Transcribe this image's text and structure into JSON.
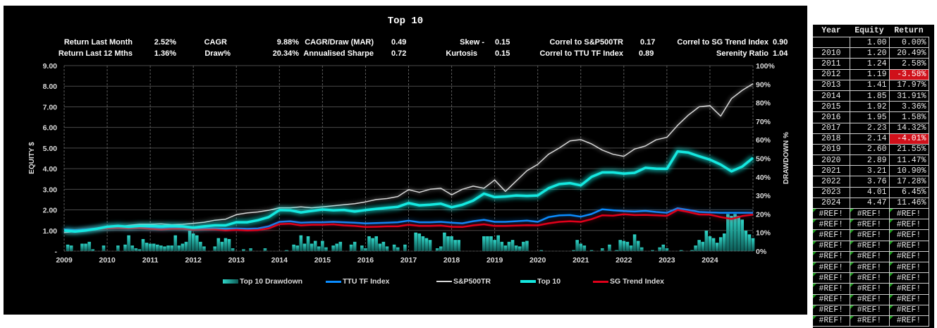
{
  "title": "Top 10",
  "stats": {
    "return_last_month": {
      "label": "Return Last Month",
      "value": "2.52%"
    },
    "return_last_12": {
      "label": "Return Last 12 Mths",
      "value": "1.36%"
    },
    "cagr": {
      "label": "CAGR",
      "value": "9.88%"
    },
    "draw": {
      "label": "Draw%",
      "value": "20.34%"
    },
    "mar": {
      "label": "CAGR/Draw (MAR)",
      "value": "0.49"
    },
    "sharpe": {
      "label": "Annualised Sharpe",
      "value": "0.72"
    },
    "skew": {
      "label": "Skew -",
      "value": "0.15"
    },
    "kurtosis": {
      "label": "Kurtosis",
      "value": "0.15"
    },
    "correl_sp": {
      "label": "Correl to S&P500TR",
      "value": "0.17"
    },
    "correl_ttu": {
      "label": "Correl to TTU TF Index",
      "value": "0.89"
    },
    "correl_sg": {
      "label": "Correl to SG Trend Index",
      "value": "0.90"
    },
    "serenity": {
      "label": "Serenity Ratio",
      "value": "1.04"
    }
  },
  "table": {
    "headers": [
      "Year",
      "Equity",
      "Return"
    ],
    "rows": [
      [
        "",
        "1.00",
        "0.00%"
      ],
      [
        "2010",
        "1.20",
        "20.49%"
      ],
      [
        "2011",
        "1.24",
        "2.58%"
      ],
      [
        "2012",
        "1.19",
        "-3.58%"
      ],
      [
        "2013",
        "1.41",
        "17.97%"
      ],
      [
        "2014",
        "1.85",
        "31.91%"
      ],
      [
        "2015",
        "1.92",
        "3.36%"
      ],
      [
        "2016",
        "1.95",
        "1.58%"
      ],
      [
        "2017",
        "2.23",
        "14.32%"
      ],
      [
        "2018",
        "2.14",
        "-4.01%"
      ],
      [
        "2019",
        "2.60",
        "21.55%"
      ],
      [
        "2020",
        "2.89",
        "11.47%"
      ],
      [
        "2021",
        "3.21",
        "10.90%"
      ],
      [
        "2022",
        "3.76",
        "17.28%"
      ],
      [
        "2023",
        "4.01",
        "6.45%"
      ],
      [
        "2024",
        "4.47",
        "11.46%"
      ],
      [
        "#REF!",
        "#REF!",
        "#REF!"
      ],
      [
        "#REF!",
        "#REF!",
        "#REF!"
      ],
      [
        "#REF!",
        "#REF!",
        "#REF!"
      ],
      [
        "#REF!",
        "#REF!",
        "#REF!"
      ],
      [
        "#REF!",
        "#REF!",
        "#REF!"
      ],
      [
        "#REF!",
        "#REF!",
        "#REF!"
      ],
      [
        "#REF!",
        "#REF!",
        "#REF!"
      ],
      [
        "#REF!",
        "#REF!",
        "#REF!"
      ],
      [
        "#REF!",
        "#REF!",
        "#REF!"
      ],
      [
        "#REF!",
        "#REF!",
        "#REF!"
      ],
      [
        "#REF!",
        "#REF!",
        "#REF!"
      ]
    ],
    "negative_color": "#d0101a"
  },
  "chart_data": {
    "type": "line",
    "ylabel": "EQUITY $",
    "y2label": "DRAWDOWN %",
    "ylim": [
      0,
      9
    ],
    "y2lim": [
      0,
      100
    ],
    "xlim": [
      2009,
      2025
    ],
    "yticks": [
      "-",
      "1.00",
      "2.00",
      "3.00",
      "4.00",
      "5.00",
      "6.00",
      "7.00",
      "8.00",
      "9.00"
    ],
    "y2ticks": [
      "0%",
      "10%",
      "20%",
      "30%",
      "40%",
      "50%",
      "60%",
      "70%",
      "80%",
      "90%",
      "100%"
    ],
    "xticks": [
      "2009",
      "2010",
      "2011",
      "2012",
      "2013",
      "2014",
      "2015",
      "2016",
      "2017",
      "2018",
      "2019",
      "2020",
      "2021",
      "2022",
      "2023",
      "2024"
    ],
    "grid": true,
    "legend_position": "bottom",
    "x_step_years": 0.25,
    "series": [
      {
        "name": "TTU TF Index",
        "color": "#0a8cff",
        "values": [
          1.05,
          1.02,
          1.05,
          1.1,
          1.15,
          1.15,
          1.12,
          1.15,
          1.12,
          1.1,
          1.12,
          1.1,
          1.08,
          1.1,
          1.1,
          1.08,
          1.1,
          1.08,
          1.1,
          1.2,
          1.42,
          1.45,
          1.38,
          1.4,
          1.4,
          1.42,
          1.4,
          1.38,
          1.34,
          1.36,
          1.38,
          1.4,
          1.48,
          1.4,
          1.4,
          1.42,
          1.38,
          1.35,
          1.45,
          1.52,
          1.42,
          1.42,
          1.45,
          1.48,
          1.42,
          1.65,
          1.73,
          1.75,
          1.67,
          1.8,
          2.03,
          1.98,
          1.94,
          1.92,
          1.95,
          1.9,
          1.86,
          2.08,
          2.0,
          1.9,
          1.88,
          1.86,
          1.86,
          1.86,
          1.86
        ]
      },
      {
        "name": "S&P500TR",
        "color": "#d8d8d8",
        "values": [
          0.9,
          0.95,
          1.05,
          1.1,
          1.2,
          1.18,
          1.25,
          1.3,
          1.3,
          1.32,
          1.28,
          1.3,
          1.35,
          1.4,
          1.5,
          1.55,
          1.77,
          1.85,
          1.9,
          1.98,
          2.1,
          2.1,
          2.15,
          2.1,
          2.15,
          2.2,
          2.25,
          2.3,
          2.39,
          2.5,
          2.55,
          2.65,
          2.98,
          2.85,
          3.0,
          3.05,
          2.73,
          3.0,
          3.15,
          3.05,
          3.45,
          2.9,
          3.4,
          3.9,
          4.21,
          4.7,
          5.0,
          5.35,
          5.41,
          5.2,
          4.9,
          4.7,
          4.6,
          4.95,
          5.1,
          5.4,
          5.52,
          6.1,
          6.6,
          7.0,
          7.06,
          6.55,
          7.4,
          7.8,
          8.12
        ]
      },
      {
        "name": "Top 10",
        "color": "#14e8e0",
        "values": [
          1.0,
          0.95,
          1.0,
          1.08,
          1.18,
          1.22,
          1.18,
          1.22,
          1.22,
          1.2,
          1.22,
          1.2,
          1.14,
          1.2,
          1.25,
          1.25,
          1.4,
          1.4,
          1.5,
          1.65,
          1.99,
          1.98,
          1.88,
          1.95,
          2.02,
          1.98,
          2.0,
          1.92,
          1.99,
          2.05,
          2.1,
          2.15,
          2.33,
          2.22,
          2.25,
          2.3,
          2.13,
          2.25,
          2.45,
          2.79,
          2.62,
          2.65,
          2.7,
          2.68,
          2.7,
          3.05,
          3.25,
          3.3,
          3.19,
          3.6,
          3.82,
          3.82,
          3.76,
          3.8,
          4.04,
          4.0,
          3.99,
          4.84,
          4.78,
          4.6,
          4.44,
          4.2,
          3.87,
          4.1,
          4.52
        ]
      },
      {
        "name": "SG Trend Index",
        "color": "#e0001a",
        "values": [
          1.0,
          0.97,
          1.02,
          1.08,
          1.1,
          1.12,
          1.1,
          1.12,
          1.08,
          1.05,
          1.08,
          1.08,
          1.03,
          1.05,
          1.05,
          1.0,
          1.03,
          1.0,
          1.02,
          1.1,
          1.31,
          1.33,
          1.25,
          1.28,
          1.28,
          1.3,
          1.25,
          1.22,
          1.17,
          1.18,
          1.2,
          1.2,
          1.28,
          1.22,
          1.22,
          1.24,
          1.18,
          1.17,
          1.25,
          1.3,
          1.22,
          1.22,
          1.24,
          1.26,
          1.25,
          1.35,
          1.42,
          1.45,
          1.42,
          1.55,
          1.74,
          1.72,
          1.79,
          1.75,
          1.76,
          1.74,
          1.71,
          2.0,
          1.9,
          1.78,
          1.77,
          1.65,
          1.56,
          1.7,
          1.77
        ]
      }
    ],
    "drawdown": {
      "name": "Top 10 Drawdown",
      "color": "#1fb5a8",
      "x_step_years": 0.0833,
      "values_pct": [
        0,
        3.5,
        3,
        0,
        0,
        4,
        4,
        5,
        1,
        0,
        0,
        3,
        0,
        0,
        0,
        3,
        0,
        3.5,
        8.5,
        3,
        1.5,
        1,
        6.5,
        4.5,
        4,
        4,
        3.5,
        3,
        2.5,
        3,
        3,
        8.5,
        3,
        4,
        5,
        11,
        9.5,
        8.5,
        5,
        2.5,
        0,
        0,
        2.5,
        7,
        5,
        7,
        6.5,
        1.5,
        0,
        0,
        1,
        0,
        1.5,
        0,
        0,
        0,
        1.5,
        0,
        0,
        0,
        0,
        0,
        0.5,
        0,
        3.5,
        3,
        8.5,
        4,
        8,
        4,
        5.5,
        2.5,
        5.5,
        2,
        0,
        3,
        4,
        5,
        0,
        0,
        3.5,
        5,
        0,
        3,
        1.5,
        8,
        7,
        8,
        4,
        5,
        2.5,
        0,
        3.5,
        2,
        0,
        3.5,
        0,
        0,
        10,
        9.5,
        8,
        7,
        6,
        0,
        1.5,
        2.5,
        10,
        8,
        8,
        6,
        6,
        0,
        0,
        0,
        0,
        0,
        0,
        8,
        8,
        8,
        6,
        8.5,
        5,
        3,
        5,
        6,
        3,
        2.5,
        5,
        5.5,
        0,
        0,
        0,
        0.5,
        0,
        0,
        0,
        0,
        0,
        0,
        0,
        0,
        0.5,
        6,
        4,
        3,
        0,
        0.5,
        0,
        0,
        1.5,
        0,
        3.5,
        0,
        0.5,
        6,
        5.5,
        5,
        3,
        9,
        5.5,
        2,
        0,
        0,
        0.5,
        0,
        2,
        3.5,
        1.5,
        0,
        0,
        0,
        0.5,
        0,
        0,
        0.5,
        3,
        6,
        5,
        11,
        8,
        7,
        4.5,
        7.5,
        9.5,
        20,
        19,
        20,
        19,
        17,
        11,
        9,
        7
      ]
    }
  }
}
